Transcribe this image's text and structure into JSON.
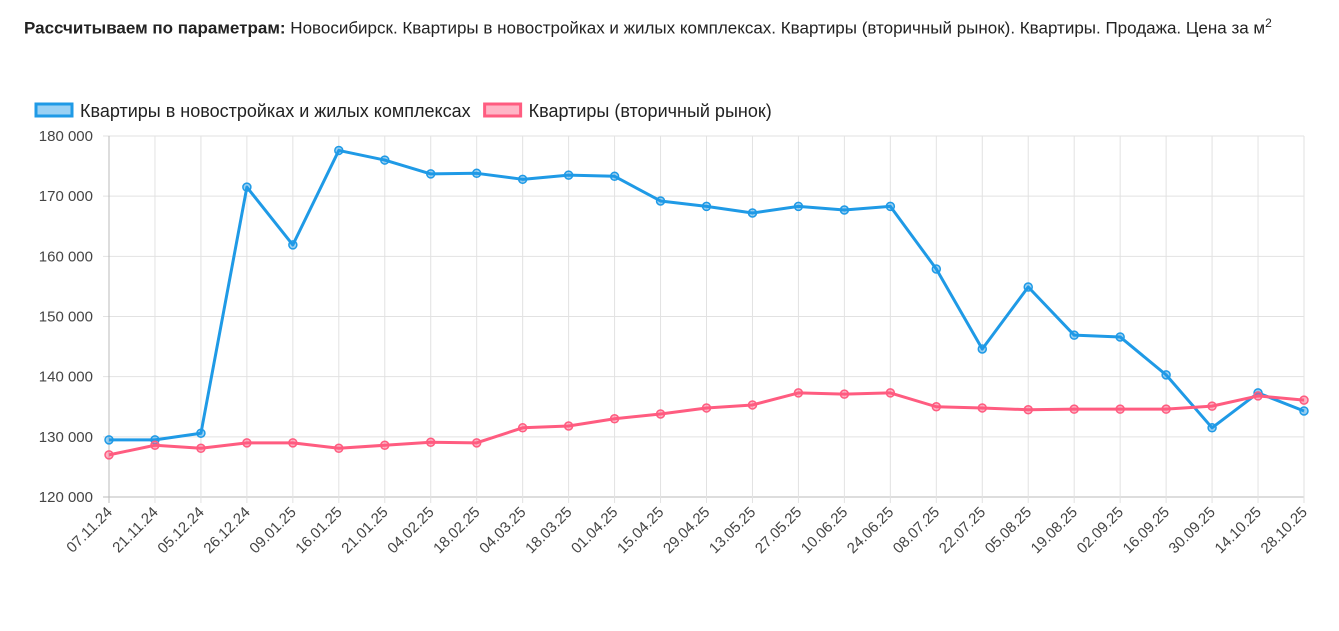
{
  "header": {
    "label": "Рассчитываем по параметрам:",
    "text": "Новосибирск. Квартиры в новостройках и жилых комплексах. Квартиры (вторичный рынок). Квартиры. Продажа. Цена за м",
    "superscript": "2"
  },
  "chart_data": {
    "type": "line",
    "title": "",
    "xlabel": "",
    "ylabel": "",
    "ylim": [
      120000,
      180000
    ],
    "yticks": [
      "120 000",
      "130 000",
      "140 000",
      "150 000",
      "160 000",
      "170 000",
      "180 000"
    ],
    "grid": true,
    "legend": "top",
    "categories": [
      "07.11.24",
      "21.11.24",
      "05.12.24",
      "26.12.24",
      "09.01.25",
      "16.01.25",
      "21.01.25",
      "04.02.25",
      "18.02.25",
      "04.03.25",
      "18.03.25",
      "01.04.25",
      "15.04.25",
      "29.04.25",
      "13.05.25",
      "27.05.25",
      "10.06.25",
      "24.06.25",
      "08.07.25",
      "22.07.25",
      "05.08.25",
      "19.08.25",
      "02.09.25",
      "16.09.25",
      "30.09.25",
      "14.10.25",
      "28.10.25"
    ],
    "series": [
      {
        "name": "Квартиры в новостройках и жилых комплексах",
        "color": "#1f9ae6",
        "values": [
          129500,
          129500,
          130600,
          171500,
          161900,
          177600,
          176000,
          173700,
          173800,
          172800,
          173500,
          173300,
          169200,
          168300,
          167200,
          168300,
          167700,
          168300,
          157900,
          144600,
          154900,
          146900,
          146600,
          140300,
          131500,
          137300,
          134300
        ]
      },
      {
        "name": "Квартиры (вторичный рынок)",
        "color": "#ff5c80",
        "values": [
          127000,
          128600,
          128100,
          129000,
          129000,
          128100,
          128600,
          129100,
          129000,
          131500,
          131800,
          133000,
          133800,
          134800,
          135300,
          137300,
          137100,
          137300,
          135000,
          134800,
          134500,
          134600,
          134600,
          134600,
          135100,
          136800,
          136100
        ]
      }
    ]
  }
}
